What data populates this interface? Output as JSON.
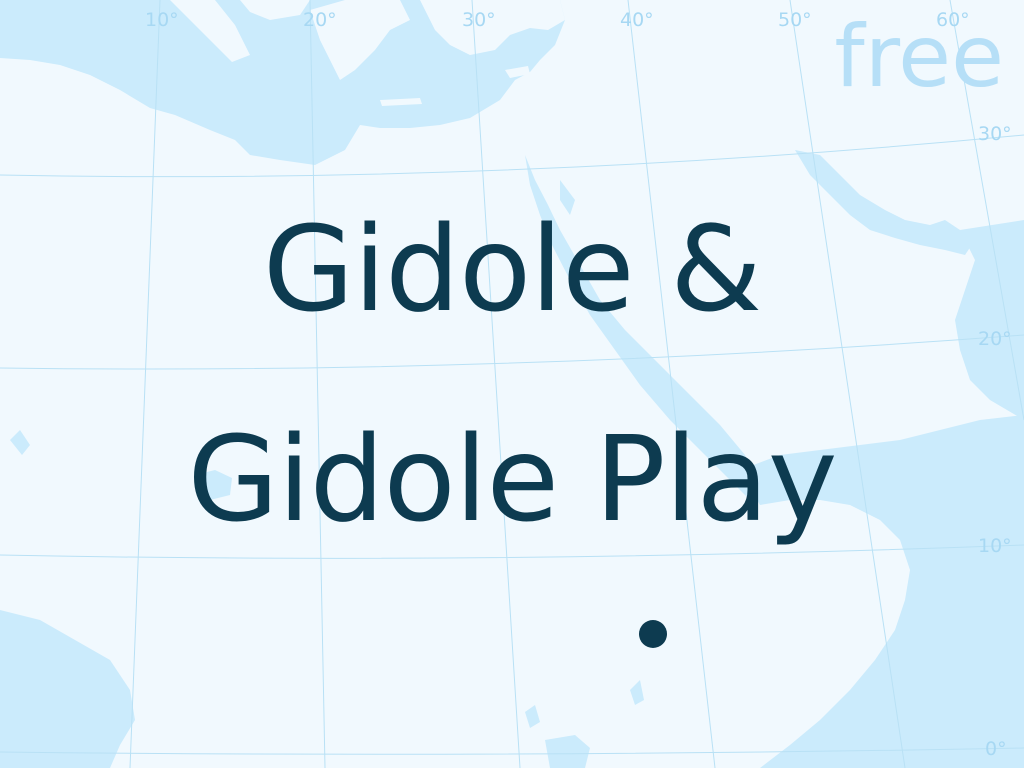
{
  "title": {
    "line1": "Gidole &",
    "line2": "Gidole Play"
  },
  "badge": "free",
  "map": {
    "longitude_labels": [
      "10°",
      "20°",
      "30°",
      "40°",
      "50°",
      "60°"
    ],
    "latitude_labels": [
      "30°",
      "20°",
      "10°",
      "0°"
    ],
    "colors": {
      "land": "#f1f9fe",
      "water": "#cbebfc",
      "graticule": "#b9e1f5",
      "label": "#a7d8f3"
    }
  },
  "colors": {
    "title": "#0d3b50",
    "badge": "#b6dff7"
  }
}
